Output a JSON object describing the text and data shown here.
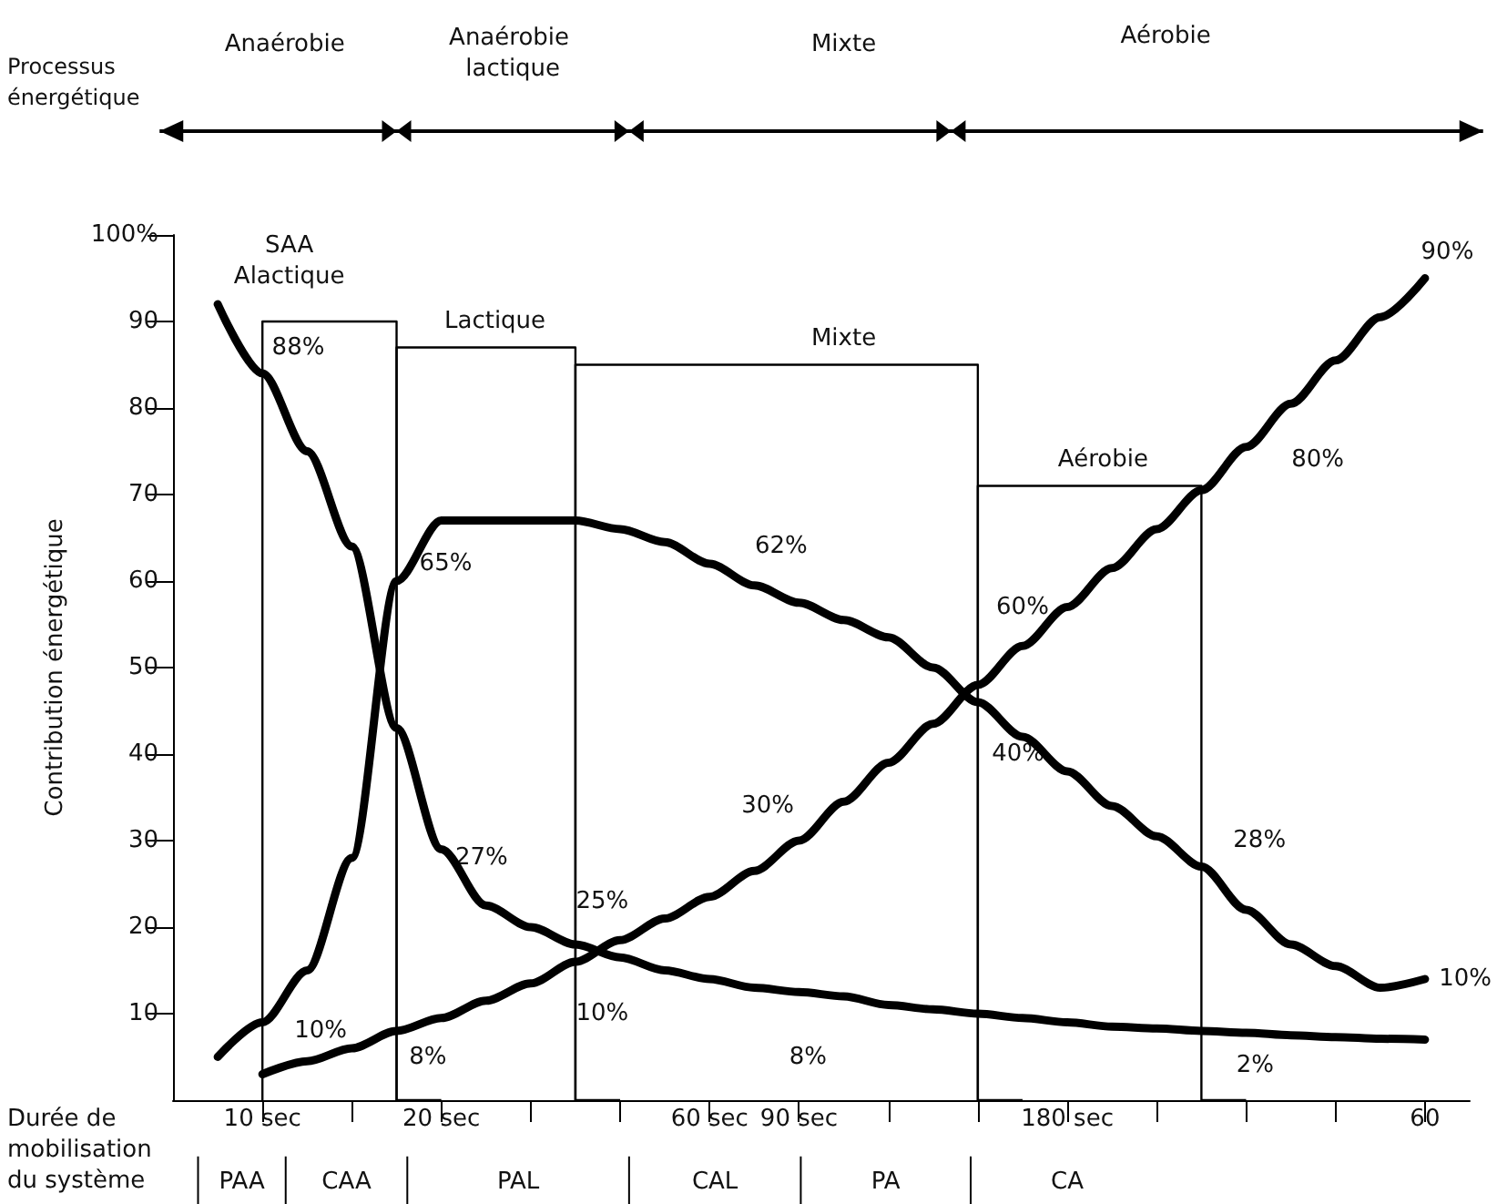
{
  "chart_data": {
    "type": "line",
    "xlabel": "Durée de mobilisation du système",
    "ylabel": "Contribution énergétique",
    "categories": [
      null,
      null,
      "10 sec",
      null,
      null,
      null,
      "20 sec",
      null,
      null,
      null,
      null,
      null,
      "60 sec",
      null,
      "90 sec",
      null,
      null,
      null,
      null,
      null,
      "180 sec",
      null,
      null,
      null,
      null,
      null,
      null,
      null,
      "60",
      null
    ],
    "ylim": [
      0,
      100
    ],
    "yticks": [
      10,
      20,
      30,
      40,
      50,
      60,
      70,
      80,
      90,
      {
        "value": 100,
        "label": "100%"
      }
    ],
    "series": [
      {
        "type": "step",
        "color": "#000000",
        "values": [
          null,
          null,
          0,
          90,
          90,
          90,
          0,
          null,
          null,
          null,
          null,
          null,
          null,
          null,
          null,
          null,
          null,
          null,
          null,
          null,
          null,
          null,
          null,
          null,
          null,
          null,
          null,
          null,
          null,
          null
        ]
      },
      {
        "type": "step",
        "color": "#000000",
        "values": [
          null,
          null,
          null,
          null,
          null,
          0,
          87,
          87,
          87,
          87,
          0,
          null,
          null,
          null,
          null,
          null,
          null,
          null,
          null,
          null,
          null,
          null,
          null,
          null,
          null,
          null,
          null,
          null,
          null,
          null
        ]
      },
      {
        "type": "step",
        "color": "#000000",
        "values": [
          null,
          null,
          null,
          null,
          null,
          null,
          null,
          null,
          null,
          0,
          85,
          85,
          85,
          85,
          85,
          85,
          85,
          85,
          85,
          0,
          null,
          null,
          null,
          null,
          null,
          null,
          null,
          null,
          null,
          null
        ]
      },
      {
        "type": "step",
        "color": "#000000",
        "values": [
          null,
          null,
          null,
          null,
          null,
          null,
          null,
          null,
          null,
          null,
          null,
          null,
          null,
          null,
          null,
          null,
          null,
          null,
          0,
          71,
          71,
          71,
          71,
          71,
          0,
          null,
          null,
          null,
          null,
          null
        ]
      },
      {
        "color": "#000000",
        "values": [
          null,
          92,
          84,
          75,
          64,
          43,
          29,
          22.5,
          20,
          18,
          16.5,
          15,
          14,
          13,
          12.5,
          12,
          11,
          10.5,
          10,
          9.5,
          9,
          8.5,
          8.3,
          8,
          7.8,
          7.5,
          7.3,
          7.1,
          7,
          null
        ]
      },
      {
        "color": "#000000",
        "values": [
          null,
          5,
          9,
          15,
          28,
          60,
          67,
          67,
          67,
          67,
          66,
          64.5,
          62,
          59.5,
          57.5,
          55.5,
          53.5,
          50,
          46,
          42,
          38,
          34,
          30.5,
          27,
          22,
          18,
          15.5,
          13,
          14,
          null
        ]
      },
      {
        "color": "#000000",
        "values": [
          null,
          null,
          3,
          4.5,
          6,
          8,
          9.5,
          11.5,
          13.5,
          16,
          18.5,
          21,
          23.5,
          26.5,
          30,
          34.5,
          39,
          43.5,
          48,
          52.5,
          57,
          61.5,
          66,
          70.5,
          75.5,
          80.5,
          85.5,
          90.5,
          95,
          null
        ]
      }
    ],
    "annotations": [
      "Processus énergétique",
      "Anaérobie",
      "Anaérobie lactique",
      "Mixte",
      "Aérobie",
      "SAA\nAlactique",
      "Lactique",
      "Mixte",
      "Aérobie",
      "88%",
      "65%",
      "27%",
      "25%",
      "10%",
      "10%",
      "8%",
      "8%",
      "2%",
      "62%",
      "60%",
      "40%",
      "30%",
      "80%",
      "90%",
      "28%",
      "10%",
      "PAA",
      "CAA",
      "PAL",
      "CAL",
      "PA",
      "CA"
    ]
  }
}
